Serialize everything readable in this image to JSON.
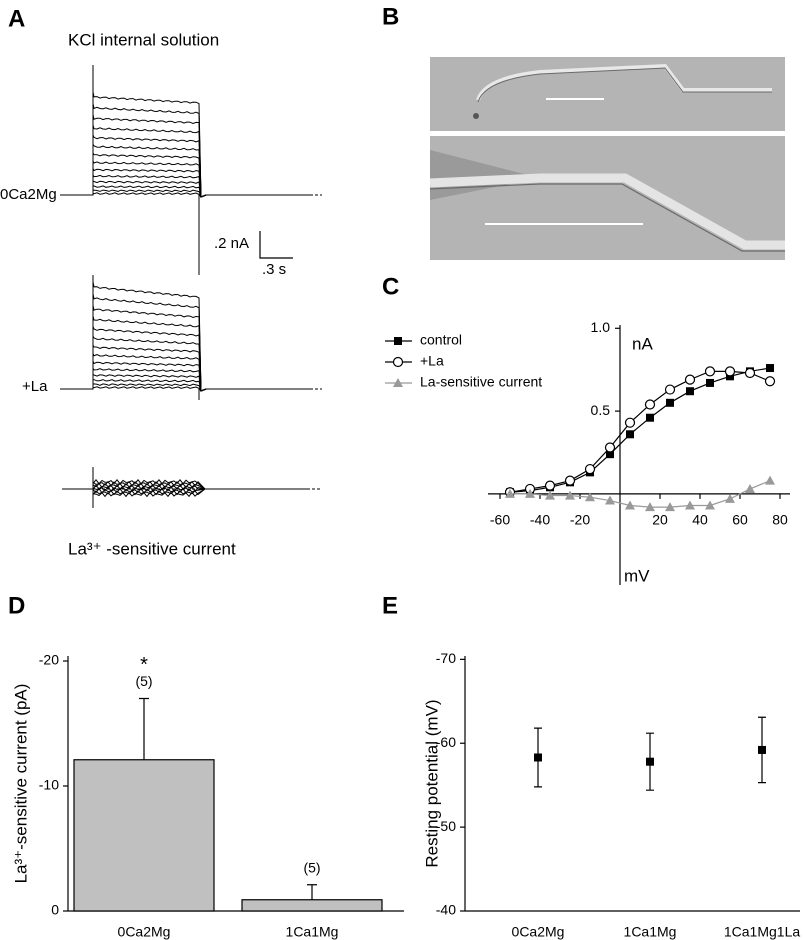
{
  "panels": [
    "A",
    "B",
    "C",
    "D",
    "E"
  ],
  "panel_a": {
    "title": "KCl internal solution",
    "trace_labels": [
      "0Ca2Mg",
      "+La"
    ],
    "bottom_label": "La³⁺ -sensitive current",
    "scale_labels": [
      ".2 nA",
      ".3 s"
    ]
  },
  "chart_data": [
    {
      "type": "line",
      "x": [
        -55,
        -45,
        -35,
        -25,
        -15,
        -5,
        5,
        15,
        25,
        35,
        45,
        55,
        65,
        75
      ],
      "series": [
        {
          "name": "control",
          "color": "#000000",
          "marker": "square",
          "values": [
            0.01,
            0.02,
            0.04,
            0.07,
            0.13,
            0.24,
            0.36,
            0.46,
            0.55,
            0.62,
            0.67,
            0.71,
            0.74,
            0.76
          ]
        },
        {
          "name": "+La",
          "color": "#000000",
          "marker": "circle",
          "values": [
            0.01,
            0.03,
            0.05,
            0.08,
            0.15,
            0.28,
            0.43,
            0.54,
            0.63,
            0.69,
            0.74,
            0.74,
            0.73,
            0.68
          ]
        },
        {
          "name": "La-sensitive current",
          "color": "#999999",
          "marker": "triangle",
          "values": [
            0,
            0,
            -0.01,
            -0.01,
            -0.02,
            -0.04,
            -0.07,
            -0.08,
            -0.08,
            -0.07,
            -0.07,
            -0.03,
            0.03,
            0.08
          ]
        }
      ],
      "xlim": [
        -70,
        85
      ],
      "ylim": [
        -0.55,
        1.05
      ],
      "xticks": [
        -60,
        -40,
        -20,
        20,
        40,
        60,
        80
      ],
      "yticks": [
        0.5,
        {
          "value": 1,
          "label": "1.0"
        }
      ],
      "y_unit": "nA",
      "x_unit": "mV",
      "legend": "upper left"
    },
    {
      "type": "bar",
      "categories": [
        "0Ca2Mg",
        "1Ca1Mg"
      ],
      "values": [
        -12.1,
        -0.9
      ],
      "errors": [
        4.9,
        1.2
      ],
      "n_labels": [
        "(5)",
        "(5)"
      ],
      "significance": "*",
      "color": "#c0c0c0",
      "ylabel": "La³⁺-sensitive current (pA)",
      "ylim": [
        0,
        -20.4
      ],
      "yticks": [
        -20,
        -10,
        0
      ]
    },
    {
      "type": "scatter",
      "categories": [
        "0Ca2Mg",
        "1Ca1Mg",
        "1Ca1Mg1La"
      ],
      "values": [
        -58.3,
        -57.8,
        -59.2
      ],
      "errors": [
        3.5,
        3.4,
        3.9
      ],
      "color": "#000000",
      "ylabel": "Resting potential (mV)",
      "ylim": [
        -40,
        -70.4
      ],
      "yticks": [
        -70,
        -60,
        -50,
        -40
      ]
    }
  ]
}
